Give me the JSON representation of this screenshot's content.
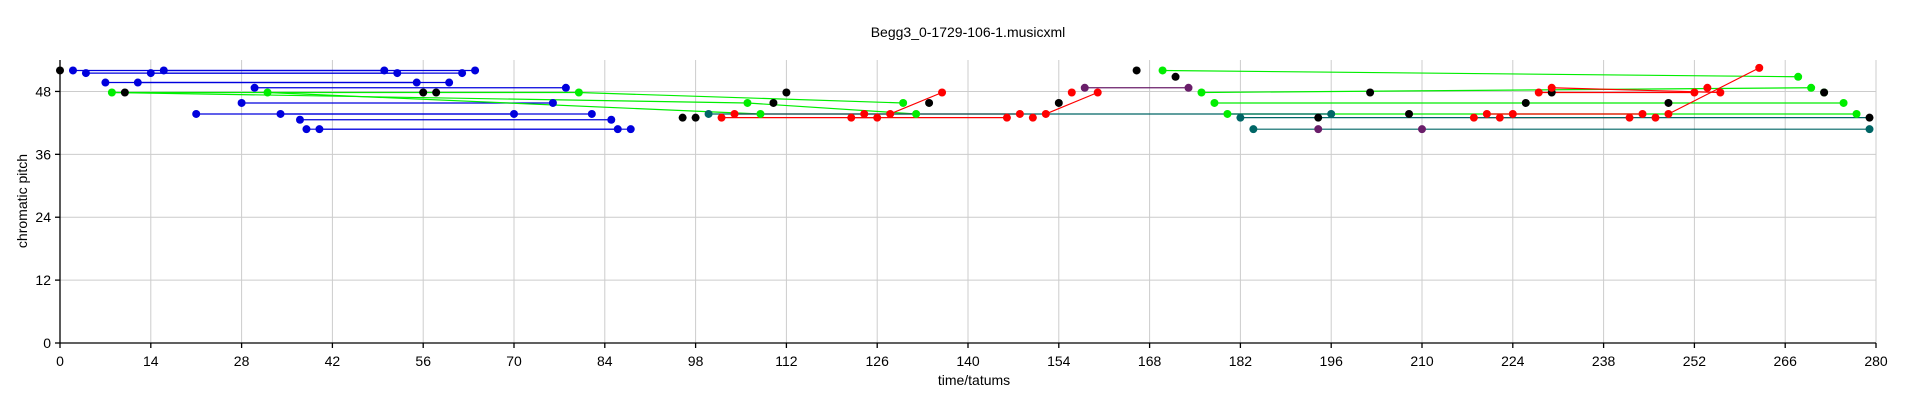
{
  "chart_data": {
    "type": "scatter",
    "title": "Begg3_0-1729-106-1.musicxml",
    "xlabel": "time/tatums",
    "ylabel": "chromatic pitch",
    "xlim": [
      0,
      280
    ],
    "ylim": [
      0,
      54
    ],
    "xticks": [
      0,
      14,
      28,
      42,
      56,
      70,
      84,
      98,
      112,
      126,
      140,
      154,
      168,
      182,
      196,
      210,
      224,
      238,
      252,
      266,
      280
    ],
    "yticks": [
      0,
      12,
      24,
      36,
      48
    ],
    "grid": true,
    "legend": "none",
    "series": [
      {
        "color": "#0000dd",
        "points": [
          [
            2,
            52
          ],
          [
            4,
            51.5
          ],
          [
            7,
            49.7
          ],
          [
            12,
            49.7
          ],
          [
            14,
            51.5
          ],
          [
            16,
            52
          ],
          [
            21,
            43.7
          ],
          [
            28,
            45.8
          ],
          [
            30,
            48.7
          ],
          [
            34,
            43.7
          ],
          [
            37,
            42.6
          ],
          [
            38,
            40.8
          ],
          [
            40,
            40.8
          ],
          [
            50,
            52
          ],
          [
            52,
            51.5
          ],
          [
            55,
            49.7
          ],
          [
            60,
            49.7
          ],
          [
            62,
            51.5
          ],
          [
            64,
            52
          ],
          [
            70,
            43.7
          ],
          [
            76,
            45.8
          ],
          [
            78,
            48.7
          ],
          [
            82,
            43.7
          ],
          [
            85,
            42.6
          ],
          [
            86,
            40.8
          ],
          [
            88,
            40.8
          ]
        ],
        "lines": [
          [
            [
              2,
              52
            ],
            [
              50,
              52
            ]
          ],
          [
            [
              16,
              52
            ],
            [
              64,
              52
            ]
          ],
          [
            [
              4,
              51.5
            ],
            [
              52,
              51.5
            ]
          ],
          [
            [
              14,
              51.5
            ],
            [
              62,
              51.5
            ]
          ],
          [
            [
              7,
              49.7
            ],
            [
              55,
              49.7
            ]
          ],
          [
            [
              12,
              49.7
            ],
            [
              60,
              49.7
            ]
          ],
          [
            [
              30,
              48.7
            ],
            [
              78,
              48.7
            ]
          ],
          [
            [
              28,
              45.8
            ],
            [
              76,
              45.8
            ]
          ],
          [
            [
              21,
              43.7
            ],
            [
              70,
              43.7
            ]
          ],
          [
            [
              34,
              43.7
            ],
            [
              82,
              43.7
            ]
          ],
          [
            [
              37,
              42.6
            ],
            [
              85,
              42.6
            ]
          ],
          [
            [
              38,
              40.8
            ],
            [
              86,
              40.8
            ]
          ],
          [
            [
              40,
              40.8
            ],
            [
              88,
              40.8
            ]
          ]
        ]
      },
      {
        "color": "#00ee00",
        "points": [
          [
            8,
            47.8
          ],
          [
            32,
            47.8
          ],
          [
            80,
            47.8
          ],
          [
            106,
            45.8
          ],
          [
            108,
            43.7
          ],
          [
            130,
            45.8
          ],
          [
            132,
            43.7
          ],
          [
            170,
            52
          ],
          [
            176,
            47.8
          ],
          [
            178,
            45.8
          ],
          [
            180,
            43.7
          ],
          [
            268,
            50.8
          ],
          [
            270,
            48.7
          ],
          [
            272,
            47.8
          ],
          [
            275,
            45.8
          ],
          [
            277,
            43.7
          ]
        ],
        "lines": [
          [
            [
              8,
              47.8
            ],
            [
              80,
              47.8
            ]
          ],
          [
            [
              8,
              47.8
            ],
            [
              106,
              45.8
            ]
          ],
          [
            [
              32,
              47.8
            ],
            [
              108,
              43.7
            ]
          ],
          [
            [
              80,
              47.8
            ],
            [
              130,
              45.8
            ]
          ],
          [
            [
              106,
              45.8
            ],
            [
              132,
              43.7
            ]
          ],
          [
            [
              170,
              52
            ],
            [
              268,
              50.8
            ]
          ],
          [
            [
              176,
              47.8
            ],
            [
              270,
              48.7
            ]
          ],
          [
            [
              178,
              45.8
            ],
            [
              275,
              45.8
            ]
          ],
          [
            [
              180,
              43.7
            ],
            [
              277,
              43.7
            ]
          ]
        ]
      },
      {
        "color": "#000000",
        "points": [
          [
            0,
            52
          ],
          [
            10,
            47.8
          ],
          [
            56,
            47.8
          ],
          [
            58,
            47.8
          ],
          [
            96,
            43
          ],
          [
            98,
            43
          ],
          [
            110,
            45.8
          ],
          [
            112,
            47.8
          ],
          [
            134,
            45.8
          ],
          [
            154,
            45.8
          ],
          [
            166,
            52
          ],
          [
            172,
            50.8
          ],
          [
            194,
            43
          ],
          [
            202,
            47.8
          ],
          [
            208,
            43.7
          ],
          [
            226,
            45.8
          ],
          [
            230,
            47.8
          ],
          [
            248,
            45.8
          ],
          [
            272,
            47.8
          ],
          [
            279,
            43
          ]
        ],
        "lines": []
      },
      {
        "color": "#ff0000",
        "points": [
          [
            102,
            43
          ],
          [
            104,
            43.7
          ],
          [
            122,
            43
          ],
          [
            124,
            43.7
          ],
          [
            126,
            43
          ],
          [
            128,
            43.7
          ],
          [
            136,
            47.8
          ],
          [
            146,
            43
          ],
          [
            148,
            43.7
          ],
          [
            150,
            43
          ],
          [
            152,
            43.7
          ],
          [
            156,
            47.8
          ],
          [
            160,
            47.8
          ],
          [
            218,
            43
          ],
          [
            220,
            43.7
          ],
          [
            222,
            43
          ],
          [
            224,
            43.7
          ],
          [
            228,
            47.8
          ],
          [
            230,
            48.7
          ],
          [
            242,
            43
          ],
          [
            244,
            43.7
          ],
          [
            246,
            43
          ],
          [
            248,
            43.7
          ],
          [
            252,
            47.8
          ],
          [
            254,
            48.7
          ],
          [
            256,
            47.8
          ],
          [
            262,
            52.5
          ]
        ],
        "lines": [
          [
            [
              102,
              43
            ],
            [
              146,
              43
            ]
          ],
          [
            [
              104,
              43.7
            ],
            [
              148,
              43.7
            ]
          ],
          [
            [
              122,
              43
            ],
            [
              126,
              43
            ]
          ],
          [
            [
              128,
              43.7
            ],
            [
              136,
              47.8
            ]
          ],
          [
            [
              152,
              43.7
            ],
            [
              160,
              47.8
            ]
          ],
          [
            [
              218,
              43
            ],
            [
              242,
              43
            ]
          ],
          [
            [
              220,
              43.7
            ],
            [
              244,
              43.7
            ]
          ],
          [
            [
              228,
              47.8
            ],
            [
              252,
              47.8
            ]
          ],
          [
            [
              230,
              48.7
            ],
            [
              256,
              47.8
            ]
          ],
          [
            [
              248,
              43.7
            ],
            [
              262,
              52.5
            ]
          ]
        ]
      },
      {
        "color": "#006666",
        "points": [
          [
            100,
            43.7
          ],
          [
            182,
            43
          ],
          [
            184,
            40.8
          ],
          [
            196,
            43.7
          ],
          [
            279,
            40.8
          ]
        ],
        "lines": [
          [
            [
              100,
              43.7
            ],
            [
              196,
              43.7
            ]
          ],
          [
            [
              182,
              43
            ],
            [
              279,
              43
            ]
          ],
          [
            [
              184,
              40.8
            ],
            [
              279,
              40.8
            ]
          ]
        ]
      },
      {
        "color": "#6a1e6a",
        "points": [
          [
            158,
            48.7
          ],
          [
            174,
            48.7
          ],
          [
            194,
            40.8
          ],
          [
            210,
            40.8
          ]
        ],
        "lines": [
          [
            [
              158,
              48.7
            ],
            [
              174,
              48.7
            ]
          ]
        ]
      }
    ]
  }
}
